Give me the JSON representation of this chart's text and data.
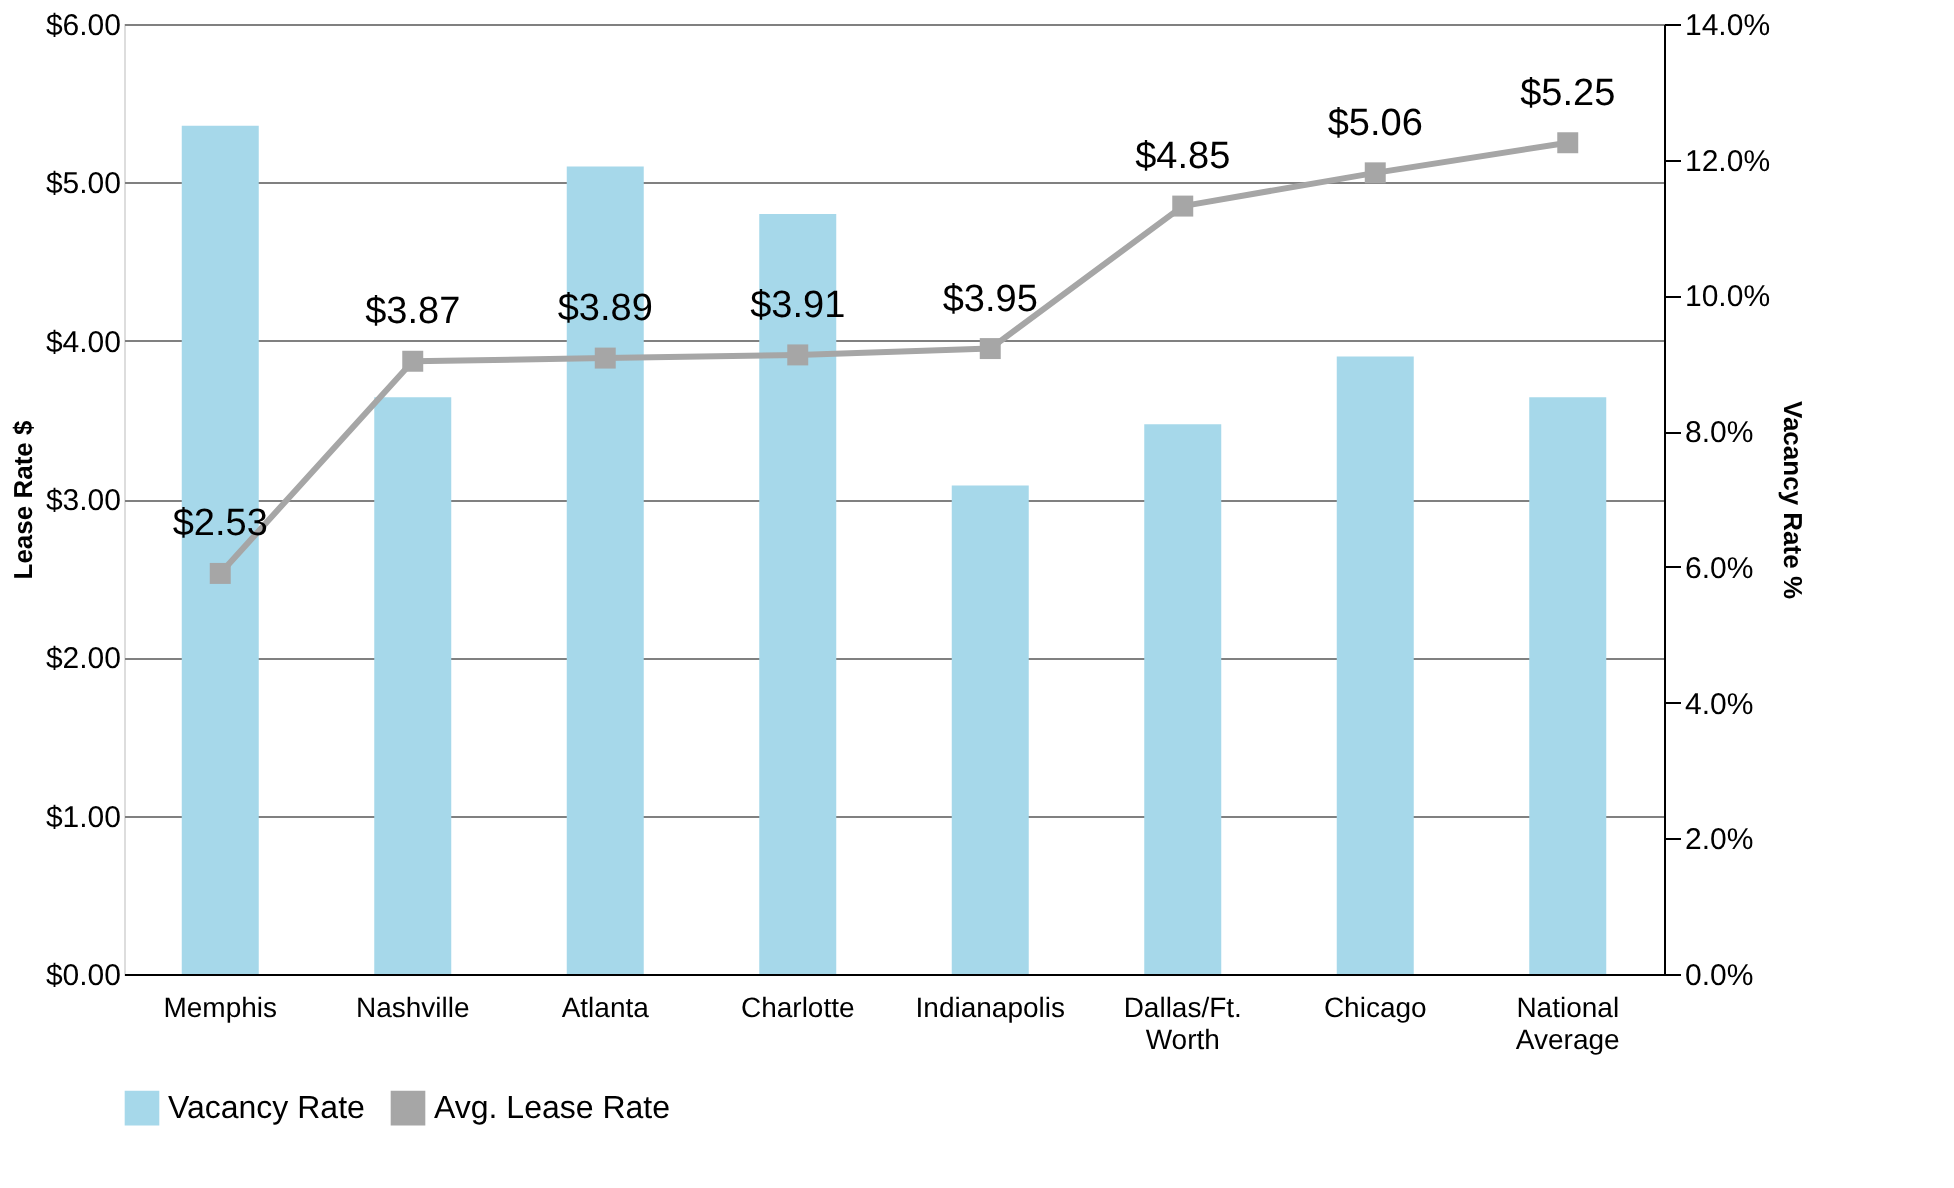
{
  "chart_data": {
    "type": "bar",
    "categories": [
      "Memphis",
      "Nashville",
      "Atlanta",
      "Charlotte",
      "Indianapolis",
      "Dallas/Ft. Worth",
      "Chicago",
      "National Average"
    ],
    "series": [
      {
        "name": "Vacancy Rate",
        "axis": "y2",
        "color": "#a6d8ea",
        "values": [
          12.5,
          8.5,
          11.9,
          11.2,
          7.2,
          8.1,
          9.1,
          8.5
        ]
      },
      {
        "name": "Avg. Lease Rate",
        "type": "line",
        "color": "#a6a6a6",
        "values": [
          2.53,
          3.87,
          3.89,
          3.91,
          3.95,
          4.85,
          5.06,
          5.25
        ],
        "value_labels": [
          "$2.53",
          "$3.87",
          "$3.89",
          "$3.91",
          "$3.95",
          "$4.85",
          "$5.06",
          "$5.25"
        ]
      }
    ],
    "ylabel": "Lease Rate $",
    "y2label": "Vacancy Rate %",
    "ylim": [
      0,
      6
    ],
    "yticks": [
      {
        "value": 0,
        "label": "$0.00"
      },
      {
        "value": 1,
        "label": "$1.00"
      },
      {
        "value": 2,
        "label": "$2.00"
      },
      {
        "value": 3,
        "label": "$3.00"
      },
      {
        "value": 4,
        "label": "$4.00"
      },
      {
        "value": 5,
        "label": "$5.00"
      },
      {
        "value": 6,
        "label": "$6.00"
      }
    ],
    "y2lim": [
      0,
      14
    ],
    "y2ticks": [
      {
        "value": 0,
        "label": "0.0%"
      },
      {
        "value": 2,
        "label": "2.0%"
      },
      {
        "value": 4,
        "label": "4.0%"
      },
      {
        "value": 6,
        "label": "6.0%"
      },
      {
        "value": 8,
        "label": "8.0%"
      },
      {
        "value": 10,
        "label": "10.0%"
      },
      {
        "value": 12,
        "label": "12.0%"
      },
      {
        "value": 14,
        "label": "14.0%"
      }
    ],
    "grid": "y",
    "legend": "bottom",
    "marker": "square",
    "line_style": "solid"
  }
}
